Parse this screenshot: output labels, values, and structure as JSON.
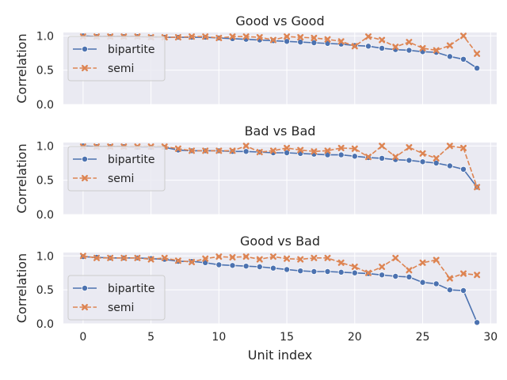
{
  "chart_data": {
    "type": "line",
    "xlabel": "Unit index",
    "ylabel": "Correlation",
    "xlim": [
      -1.45,
      30.45
    ],
    "ylim": [
      0,
      1.05
    ],
    "xticks": [
      0,
      5,
      10,
      15,
      20,
      25,
      30
    ],
    "yticks": [
      0.0,
      0.5,
      1.0
    ],
    "grid": true,
    "legend_position": "left",
    "x": [
      0,
      1,
      2,
      3,
      4,
      5,
      6,
      7,
      8,
      9,
      10,
      11,
      12,
      13,
      14,
      15,
      16,
      17,
      18,
      19,
      20,
      21,
      22,
      23,
      24,
      25,
      26,
      27,
      28,
      29
    ],
    "colors": {
      "bipartite": "#4c72b0",
      "semi": "#dd8452",
      "background": "#eaeaf2",
      "grid": "#ffffff"
    },
    "panels": [
      {
        "title": "Good vs Good",
        "series": [
          {
            "name": "bipartite",
            "marker": "circle",
            "linestyle": "solid",
            "values": [
              1.0,
              0.99,
              0.99,
              0.99,
              0.99,
              0.98,
              0.98,
              0.98,
              0.98,
              0.98,
              0.97,
              0.96,
              0.95,
              0.94,
              0.93,
              0.92,
              0.91,
              0.9,
              0.89,
              0.88,
              0.86,
              0.85,
              0.82,
              0.8,
              0.79,
              0.77,
              0.76,
              0.7,
              0.66,
              0.53
            ]
          },
          {
            "name": "semi",
            "marker": "x",
            "linestyle": "dashed",
            "values": [
              0.99,
              0.99,
              0.99,
              0.99,
              0.99,
              0.98,
              0.98,
              0.98,
              0.99,
              0.99,
              0.97,
              0.99,
              0.99,
              0.98,
              0.94,
              0.99,
              0.98,
              0.97,
              0.95,
              0.92,
              0.85,
              0.99,
              0.94,
              0.84,
              0.91,
              0.82,
              0.79,
              0.86,
              1.0,
              0.74
            ]
          }
        ]
      },
      {
        "title": "Bad vs Bad",
        "series": [
          {
            "name": "bipartite",
            "marker": "circle",
            "linestyle": "solid",
            "values": [
              1.0,
              0.99,
              0.99,
              0.99,
              0.98,
              0.98,
              0.98,
              0.94,
              0.93,
              0.93,
              0.93,
              0.92,
              0.92,
              0.91,
              0.9,
              0.9,
              0.89,
              0.88,
              0.87,
              0.87,
              0.85,
              0.83,
              0.82,
              0.8,
              0.79,
              0.77,
              0.75,
              0.71,
              0.66,
              0.4
            ]
          },
          {
            "name": "semi",
            "marker": "x",
            "linestyle": "dashed",
            "values": [
              0.99,
              0.99,
              0.99,
              0.99,
              0.99,
              0.99,
              0.99,
              0.96,
              0.93,
              0.93,
              0.93,
              0.93,
              1.0,
              0.91,
              0.93,
              0.97,
              0.94,
              0.92,
              0.93,
              0.97,
              0.96,
              0.84,
              1.0,
              0.84,
              0.98,
              0.89,
              0.82,
              1.0,
              0.97,
              0.4
            ]
          }
        ]
      },
      {
        "title": "Good vs Bad",
        "series": [
          {
            "name": "bipartite",
            "marker": "circle",
            "linestyle": "solid",
            "values": [
              0.99,
              0.98,
              0.97,
              0.97,
              0.97,
              0.96,
              0.95,
              0.92,
              0.92,
              0.9,
              0.87,
              0.86,
              0.85,
              0.84,
              0.82,
              0.8,
              0.78,
              0.77,
              0.77,
              0.76,
              0.75,
              0.74,
              0.72,
              0.7,
              0.69,
              0.61,
              0.59,
              0.5,
              0.49,
              0.02
            ]
          },
          {
            "name": "semi",
            "marker": "x",
            "linestyle": "dashed",
            "values": [
              1.0,
              0.97,
              0.97,
              0.97,
              0.97,
              0.95,
              0.97,
              0.93,
              0.91,
              0.96,
              0.99,
              0.98,
              0.99,
              0.95,
              0.99,
              0.96,
              0.95,
              0.97,
              0.97,
              0.9,
              0.84,
              0.75,
              0.84,
              0.97,
              0.79,
              0.9,
              0.94,
              0.67,
              0.74,
              0.72
            ]
          }
        ]
      }
    ]
  }
}
